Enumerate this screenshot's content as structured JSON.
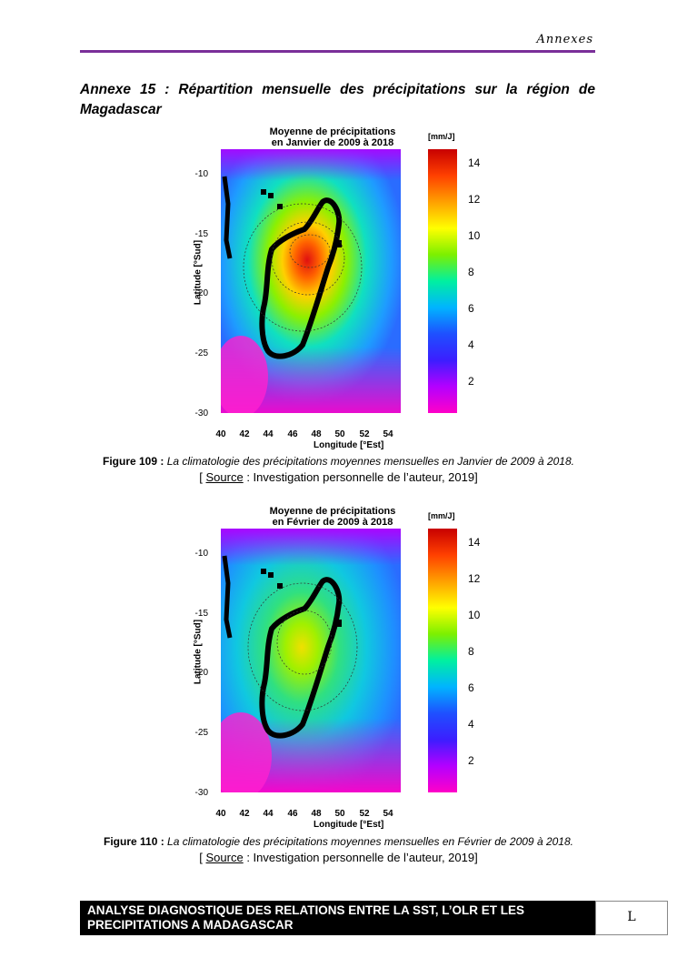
{
  "header": {
    "running_title": "Annexes"
  },
  "annex": {
    "title": "Annexe 15 : Répartition mensuelle des précipitations sur la région de Magadascar"
  },
  "figures": [
    {
      "title_line1": "Moyenne de précipitations",
      "title_line2": "en Janvier de 2009 à 2018",
      "unit": "[mm/J]",
      "ylabel": "Latitude [°Sud]",
      "xlabel": "Longitude [°Est]",
      "caption_num": "Figure 109 :",
      "caption_text": "La climatologie des précipitations moyennes mensuelles en Janvier de 2009 à 2018.",
      "source_open": "[ ",
      "source_word": "Source",
      "source_rest": " : Investigation personnelle de l’auteur, 2019]",
      "map_colors": "Janvier"
    },
    {
      "title_line1": "Moyenne de précipitations",
      "title_line2": "en Février de 2009 à 2018",
      "unit": "[mm/J]",
      "ylabel": "Latitude [°Sud]",
      "xlabel": "Longitude [°Est]",
      "caption_num": "Figure 110 :",
      "caption_text": "La climatologie des précipitations moyennes mensuelles en Février de 2009 à 2018.",
      "source_open": "[ ",
      "source_word": "Source",
      "source_rest": " : Investigation personnelle de l’auteur, 2019]",
      "map_colors": "Fevrier"
    }
  ],
  "axes": {
    "yticks": [
      "-10",
      "-15",
      "-20",
      "-25",
      "-30"
    ],
    "xticks": [
      "40",
      "42",
      "44",
      "46",
      "48",
      "50",
      "52",
      "54"
    ],
    "colorbar_ticks": [
      "14",
      "12",
      "10",
      "8",
      "6",
      "4",
      "2"
    ]
  },
  "footer": {
    "line1": "ANALYSE DIAGNOSTIQUE DES RELATIONS ENTRE LA SST, L’OLR ET LES",
    "line2": "PRECIPITATIONS A MADAGASCAR",
    "page": "L"
  }
}
